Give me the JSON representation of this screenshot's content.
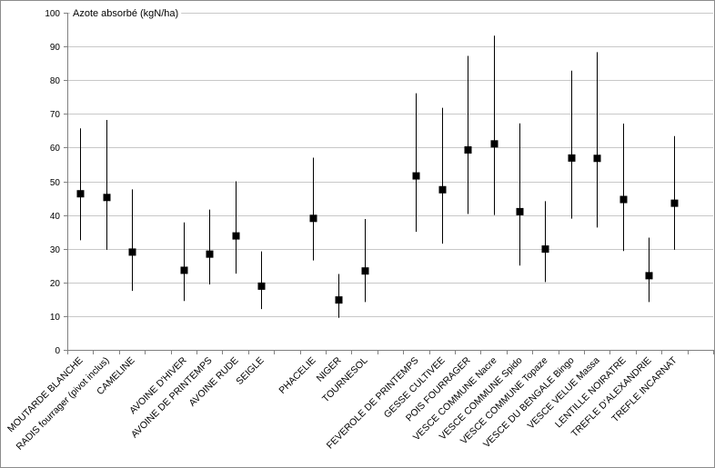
{
  "chart_data": {
    "type": "scatter",
    "ylabel": "Azote absorbé (kgN/ha)",
    "xlabel": "",
    "ylim": [
      0,
      100
    ],
    "yticks": [
      0,
      10,
      20,
      30,
      40,
      50,
      60,
      70,
      80,
      90,
      100
    ],
    "grid": true,
    "legend": "none",
    "slot_count": 25,
    "categories": [
      {
        "label": "MOUTARDE BLANCHE",
        "slot": 1,
        "mean": 46.3,
        "min": 32.5,
        "max": 65.7
      },
      {
        "label": "RADIS fourrager (pivot inclus)",
        "slot": 2,
        "mean": 45.2,
        "min": 29.7,
        "max": 68.2
      },
      {
        "label": "CAMELINE",
        "slot": 3,
        "mean": 29.0,
        "min": 17.5,
        "max": 47.6
      },
      {
        "label": "AVOINE D'HIVER",
        "slot": 5,
        "mean": 23.6,
        "min": 14.5,
        "max": 37.8
      },
      {
        "label": "AVOINE DE PRINTEMPS",
        "slot": 6,
        "mean": 28.4,
        "min": 19.4,
        "max": 41.6
      },
      {
        "label": "AVOINE RUDE",
        "slot": 7,
        "mean": 33.8,
        "min": 22.6,
        "max": 50.0
      },
      {
        "label": "SEIGLE",
        "slot": 8,
        "mean": 18.9,
        "min": 12.1,
        "max": 29.2
      },
      {
        "label": "PHACELIE",
        "slot": 10,
        "mean": 39.0,
        "min": 26.5,
        "max": 57.0
      },
      {
        "label": "NIGER",
        "slot": 11,
        "mean": 14.8,
        "min": 9.5,
        "max": 22.5
      },
      {
        "label": "TOURNESOL",
        "slot": 12,
        "mean": 23.4,
        "min": 14.2,
        "max": 38.8
      },
      {
        "label": "FEVEROLE DE PRINTEMPS",
        "slot": 14,
        "mean": 51.6,
        "min": 35.0,
        "max": 76.1
      },
      {
        "label": "GESSE CULTIVEE",
        "slot": 15,
        "mean": 47.5,
        "min": 31.5,
        "max": 71.8
      },
      {
        "label": "POIS FOURRAGER",
        "slot": 16,
        "mean": 59.3,
        "min": 40.3,
        "max": 87.2
      },
      {
        "label": "VESCE COMMUNE Nacre",
        "slot": 17,
        "mean": 61.1,
        "min": 40.0,
        "max": 93.2
      },
      {
        "label": "VESCE COMMUNE Spido",
        "slot": 18,
        "mean": 41.0,
        "min": 25.0,
        "max": 67.2
      },
      {
        "label": "VESCE COMMUNE Topaze",
        "slot": 19,
        "mean": 29.9,
        "min": 20.1,
        "max": 44.1
      },
      {
        "label": "VESCE DU BENGALE Bingo",
        "slot": 20,
        "mean": 56.9,
        "min": 38.9,
        "max": 82.8
      },
      {
        "label": "VESCE VELUE Massa",
        "slot": 21,
        "mean": 56.8,
        "min": 36.3,
        "max": 88.3
      },
      {
        "label": "LENTILLE NOIRATRE",
        "slot": 22,
        "mean": 44.6,
        "min": 29.3,
        "max": 67.1
      },
      {
        "label": "TREFLE D'ALEXANDRIE",
        "slot": 23,
        "mean": 22.0,
        "min": 14.2,
        "max": 33.3
      },
      {
        "label": "TREFLE INCARNAT",
        "slot": 24,
        "mean": 43.5,
        "min": 29.7,
        "max": 63.4
      }
    ]
  }
}
